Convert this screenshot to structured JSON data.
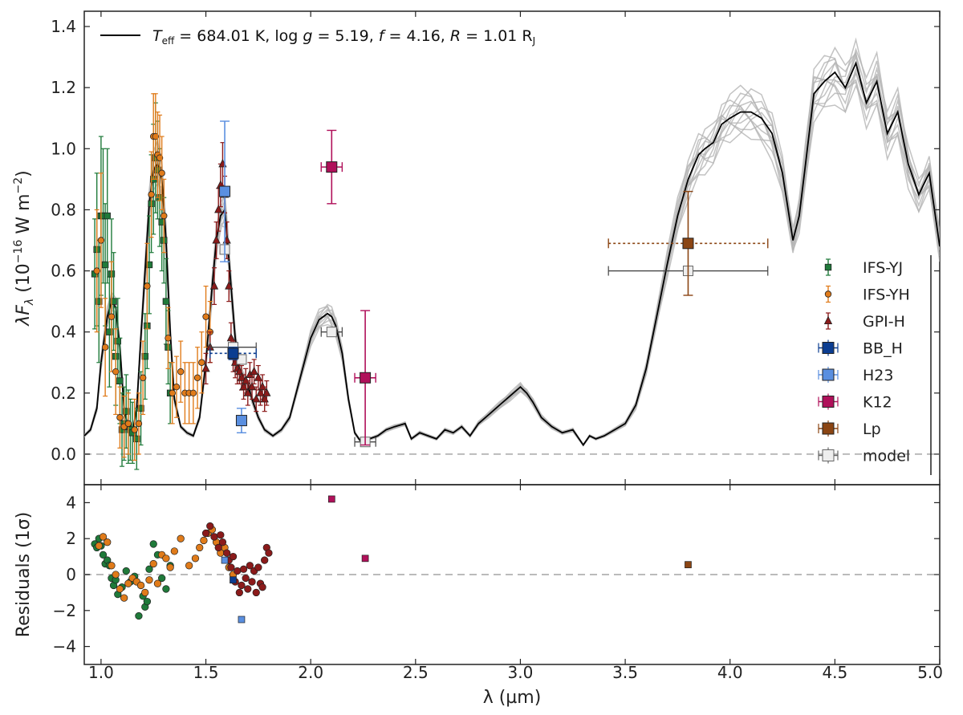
{
  "colors": {
    "model": "#000000",
    "samples": "#b4b4b4",
    "IFS-YJ": "#1f7a3a",
    "IFS-YH": "#e07b1a",
    "GPI-H": "#8b1a1a",
    "BB_H": "#0b3d91",
    "H23": "#5a8fe0",
    "K12": "#b0105a",
    "Lp": "#8b4513",
    "model_phot": "#eeeeee"
  },
  "chart_data": [
    {
      "id": "spectrum",
      "type": "line",
      "title": "T_eff = 684.01 K, log g = 5.19, f = 4.16, R = 1.01 R_J",
      "title_parts": {
        "teff_sym": "T",
        "teff_sub": "eff",
        "teff_val": " = 684.01 K, log",
        "g_sym": " g",
        "g_val": " = 5.19, ",
        "f_sym": "f",
        "f_val": " = 4.16, ",
        "r_sym": "R",
        "r_val": " = 1.01 R",
        "r_sub": "J"
      },
      "ylabel": "λF_λ (10^-16 W m^-2)",
      "ylabel_parts": {
        "pre": "λF",
        "sub": "λ",
        "mid": " (10",
        "sup": "−16",
        "post": " W m",
        "sup2": "−2",
        "end": ")"
      },
      "xlim": [
        0.92,
        5.0
      ],
      "ylim": [
        -0.1,
        1.45
      ],
      "yticks": [
        0.0,
        0.2,
        0.4,
        0.6,
        0.8,
        1.0,
        1.2,
        1.4
      ],
      "ytick_labels": [
        "0.0",
        "0.2",
        "0.4",
        "0.6",
        "0.8",
        "1.0",
        "1.2",
        "1.4"
      ],
      "model_spectrum": {
        "x": [
          0.92,
          0.95,
          0.98,
          1.0,
          1.03,
          1.05,
          1.07,
          1.09,
          1.11,
          1.13,
          1.15,
          1.17,
          1.19,
          1.21,
          1.23,
          1.25,
          1.27,
          1.29,
          1.31,
          1.33,
          1.35,
          1.38,
          1.41,
          1.44,
          1.47,
          1.5,
          1.53,
          1.55,
          1.57,
          1.59,
          1.6,
          1.62,
          1.64,
          1.66,
          1.68,
          1.7,
          1.72,
          1.75,
          1.78,
          1.82,
          1.86,
          1.9,
          1.95,
          2.0,
          2.04,
          2.08,
          2.1,
          2.12,
          2.15,
          2.18,
          2.21,
          2.24,
          2.28,
          2.32,
          2.36,
          2.4,
          2.45,
          2.48,
          2.52,
          2.56,
          2.6,
          2.64,
          2.68,
          2.72,
          2.76,
          2.8,
          2.85,
          2.9,
          2.95,
          3.0,
          3.03,
          3.06,
          3.1,
          3.15,
          3.2,
          3.25,
          3.3,
          3.33,
          3.36,
          3.4,
          3.45,
          3.5,
          3.55,
          3.6,
          3.65,
          3.7,
          3.75,
          3.8,
          3.85,
          3.88,
          3.92,
          3.96,
          4.0,
          4.05,
          4.1,
          4.15,
          4.2,
          4.25,
          4.3,
          4.33,
          4.36,
          4.4,
          4.45,
          4.5,
          4.55,
          4.6,
          4.65,
          4.7,
          4.75,
          4.8,
          4.85,
          4.9,
          4.95,
          5.0
        ],
        "y": [
          0.06,
          0.08,
          0.15,
          0.3,
          0.45,
          0.5,
          0.48,
          0.35,
          0.15,
          0.08,
          0.07,
          0.15,
          0.38,
          0.6,
          0.82,
          0.93,
          0.95,
          0.9,
          0.7,
          0.4,
          0.18,
          0.09,
          0.07,
          0.06,
          0.12,
          0.3,
          0.55,
          0.7,
          0.78,
          0.8,
          0.72,
          0.55,
          0.38,
          0.28,
          0.25,
          0.23,
          0.18,
          0.12,
          0.08,
          0.06,
          0.08,
          0.12,
          0.25,
          0.38,
          0.44,
          0.46,
          0.45,
          0.42,
          0.33,
          0.18,
          0.07,
          0.04,
          0.05,
          0.06,
          0.08,
          0.09,
          0.1,
          0.05,
          0.07,
          0.06,
          0.05,
          0.08,
          0.07,
          0.09,
          0.06,
          0.1,
          0.13,
          0.16,
          0.19,
          0.22,
          0.2,
          0.17,
          0.12,
          0.09,
          0.07,
          0.08,
          0.03,
          0.06,
          0.05,
          0.06,
          0.08,
          0.1,
          0.16,
          0.28,
          0.45,
          0.62,
          0.78,
          0.9,
          0.98,
          1.0,
          1.02,
          1.08,
          1.1,
          1.12,
          1.12,
          1.1,
          1.05,
          0.92,
          0.7,
          0.78,
          0.95,
          1.18,
          1.22,
          1.25,
          1.2,
          1.28,
          1.15,
          1.22,
          1.05,
          1.12,
          0.95,
          0.85,
          0.92,
          0.68
        ]
      },
      "series": [
        {
          "name": "IFS-YJ",
          "marker": "square",
          "x": [
            0.97,
            0.98,
            0.99,
            1.0,
            1.01,
            1.02,
            1.03,
            1.04,
            1.05,
            1.06,
            1.07,
            1.08,
            1.09,
            1.1,
            1.11,
            1.12,
            1.13,
            1.14,
            1.15,
            1.17,
            1.19,
            1.21,
            1.22,
            1.23,
            1.24,
            1.25,
            1.26,
            1.27,
            1.28,
            1.29,
            1.3,
            1.31,
            1.32,
            1.33
          ],
          "y": [
            0.59,
            0.67,
            0.5,
            0.78,
            0.78,
            0.62,
            0.78,
            0.4,
            0.59,
            0.5,
            0.32,
            0.37,
            0.24,
            0.08,
            0.1,
            0.14,
            0.09,
            0.08,
            0.07,
            0.05,
            0.15,
            0.32,
            0.42,
            0.62,
            0.82,
            0.9,
            0.97,
            0.93,
            0.84,
            0.76,
            0.7,
            0.5,
            0.35,
            0.2
          ],
          "yerr": [
            0.18,
            0.25,
            0.2,
            0.26,
            0.22,
            0.2,
            0.22,
            0.18,
            0.18,
            0.16,
            0.16,
            0.14,
            0.14,
            0.12,
            0.12,
            0.12,
            0.12,
            0.1,
            0.1,
            0.1,
            0.12,
            0.14,
            0.14,
            0.16,
            0.16,
            0.18,
            0.18,
            0.16,
            0.16,
            0.16,
            0.14,
            0.14,
            0.12,
            0.1
          ]
        },
        {
          "name": "IFS-YH",
          "marker": "circle",
          "x": [
            0.98,
            1.0,
            1.02,
            1.05,
            1.07,
            1.09,
            1.11,
            1.13,
            1.16,
            1.18,
            1.2,
            1.22,
            1.24,
            1.25,
            1.26,
            1.27,
            1.28,
            1.29,
            1.3,
            1.32,
            1.34,
            1.36,
            1.38,
            1.4,
            1.42,
            1.44,
            1.46,
            1.48,
            1.5,
            1.52
          ],
          "y": [
            0.6,
            0.7,
            0.35,
            0.45,
            0.27,
            0.12,
            0.09,
            0.1,
            0.08,
            0.1,
            0.25,
            0.55,
            0.85,
            1.04,
            1.04,
            0.98,
            0.97,
            0.92,
            0.78,
            0.38,
            0.2,
            0.22,
            0.27,
            0.2,
            0.2,
            0.2,
            0.25,
            0.3,
            0.45,
            0.4
          ],
          "yerr": [
            0.2,
            0.22,
            0.16,
            0.18,
            0.14,
            0.1,
            0.1,
            0.1,
            0.1,
            0.1,
            0.12,
            0.14,
            0.14,
            0.14,
            0.14,
            0.14,
            0.14,
            0.12,
            0.12,
            0.1,
            0.1,
            0.1,
            0.1,
            0.1,
            0.1,
            0.1,
            0.1,
            0.1,
            0.1,
            0.1
          ]
        },
        {
          "name": "GPI-H",
          "marker": "triangle",
          "x": [
            1.5,
            1.52,
            1.54,
            1.55,
            1.56,
            1.57,
            1.58,
            1.59,
            1.6,
            1.61,
            1.62,
            1.63,
            1.64,
            1.65,
            1.66,
            1.67,
            1.68,
            1.69,
            1.7,
            1.71,
            1.72,
            1.73,
            1.74,
            1.75,
            1.76,
            1.77,
            1.78,
            1.79
          ],
          "y": [
            0.28,
            0.35,
            0.55,
            0.7,
            0.8,
            0.88,
            0.95,
            0.85,
            0.7,
            0.55,
            0.38,
            0.32,
            0.3,
            0.28,
            0.27,
            0.25,
            0.22,
            0.24,
            0.2,
            0.26,
            0.22,
            0.27,
            0.18,
            0.25,
            0.2,
            0.22,
            0.18,
            0.2
          ],
          "yerr": [
            0.05,
            0.05,
            0.06,
            0.06,
            0.07,
            0.07,
            0.07,
            0.06,
            0.06,
            0.05,
            0.05,
            0.05,
            0.05,
            0.05,
            0.04,
            0.04,
            0.04,
            0.04,
            0.04,
            0.04,
            0.04,
            0.04,
            0.04,
            0.04,
            0.04,
            0.04,
            0.04,
            0.04
          ]
        }
      ],
      "photometry": [
        {
          "name": "BB_H",
          "x": 1.63,
          "y": 0.33,
          "xerr": 0.11,
          "yerr": 0.02
        },
        {
          "name": "H23",
          "x": 1.59,
          "y": 0.86,
          "xerr": 0.02,
          "yerr": 0.23
        },
        {
          "name": "H23",
          "x": 1.67,
          "y": 0.11,
          "xerr": 0.02,
          "yerr": 0.04
        },
        {
          "name": "K12",
          "x": 2.1,
          "y": 0.94,
          "xerr": 0.05,
          "yerr": 0.12
        },
        {
          "name": "K12",
          "x": 2.26,
          "y": 0.25,
          "xerr": 0.05,
          "yerr": 0.22
        },
        {
          "name": "Lp",
          "x": 3.8,
          "y": 0.69,
          "xerr": 0.38,
          "yerr": 0.17
        }
      ],
      "model_photometry": [
        {
          "x": 1.59,
          "y": 0.67,
          "xerr": 0.02
        },
        {
          "x": 1.63,
          "y": 0.35,
          "xerr": 0.11
        },
        {
          "x": 1.67,
          "y": 0.31,
          "xerr": 0.02
        },
        {
          "x": 2.1,
          "y": 0.4,
          "xerr": 0.05
        },
        {
          "x": 2.26,
          "y": 0.04,
          "xerr": 0.05
        },
        {
          "x": 3.8,
          "y": 0.6,
          "xerr": 0.38
        }
      ],
      "legend": [
        "IFS-YJ",
        "IFS-YH",
        "GPI-H",
        "BB_H",
        "H23",
        "K12",
        "Lp",
        "model"
      ],
      "legend_location": "right"
    },
    {
      "id": "residuals",
      "type": "scatter",
      "ylabel": "Residuals (1σ)",
      "xlabel": "λ (µm)",
      "xlim": [
        0.92,
        5.0
      ],
      "ylim": [
        -5,
        5
      ],
      "yticks": [
        -4,
        -2,
        0,
        2,
        4
      ],
      "ytick_labels": [
        "−4",
        "−2",
        "0",
        "2",
        "4"
      ],
      "xticks": [
        1.0,
        1.5,
        2.0,
        2.5,
        3.0,
        3.5,
        4.0,
        4.5,
        5.0
      ],
      "xtick_labels": [
        "1.0",
        "1.5",
        "2.0",
        "2.5",
        "3.0",
        "3.5",
        "4.0",
        "4.5",
        "5.0"
      ],
      "series": [
        {
          "name": "IFS-YJ",
          "x": [
            0.97,
            0.98,
            0.99,
            1.0,
            1.01,
            1.02,
            1.03,
            1.04,
            1.05,
            1.06,
            1.07,
            1.08,
            1.1,
            1.12,
            1.14,
            1.16,
            1.18,
            1.2,
            1.21,
            1.22,
            1.23,
            1.25,
            1.27,
            1.29,
            1.31,
            1.33
          ],
          "y": [
            1.7,
            1.5,
            2.0,
            1.6,
            1.1,
            0.6,
            0.8,
            0.5,
            -0.2,
            -0.6,
            -0.3,
            -1.1,
            -0.7,
            0.2,
            -0.4,
            -0.1,
            -2.3,
            -1.2,
            -1.8,
            -1.5,
            0.3,
            1.7,
            1.1,
            -0.2,
            -0.8,
            0.5
          ],
          "marker": "circle"
        },
        {
          "name": "IFS-YH",
          "x": [
            0.99,
            1.01,
            1.03,
            1.05,
            1.07,
            1.09,
            1.11,
            1.13,
            1.15,
            1.17,
            1.19,
            1.21,
            1.23,
            1.25,
            1.27,
            1.29,
            1.31,
            1.33,
            1.35,
            1.38,
            1.42,
            1.45,
            1.47,
            1.49,
            1.51,
            1.53,
            1.55,
            1.57,
            1.59,
            1.61,
            1.63
          ],
          "y": [
            1.6,
            2.1,
            1.8,
            0.5,
            0.0,
            -0.8,
            -1.3,
            -0.5,
            -0.2,
            -0.4,
            -0.6,
            -1.0,
            -0.3,
            0.6,
            -0.5,
            1.1,
            0.9,
            0.4,
            1.3,
            2.0,
            0.5,
            0.9,
            1.5,
            1.9,
            2.3,
            2.5,
            1.8,
            1.2,
            1.5,
            0.4,
            0.0
          ],
          "marker": "circle"
        },
        {
          "name": "GPI-H",
          "x": [
            1.5,
            1.52,
            1.54,
            1.56,
            1.57,
            1.58,
            1.6,
            1.61,
            1.62,
            1.63,
            1.64,
            1.65,
            1.66,
            1.67,
            1.68,
            1.69,
            1.7,
            1.71,
            1.72,
            1.73,
            1.74,
            1.75,
            1.76,
            1.77,
            1.78,
            1.79,
            1.8
          ],
          "y": [
            2.3,
            2.7,
            2.1,
            1.5,
            2.2,
            1.8,
            1.2,
            0.8,
            0.4,
            1.0,
            -0.4,
            0.2,
            -1.0,
            -0.6,
            0.3,
            -0.2,
            -0.8,
            0.5,
            -0.4,
            0.2,
            -1.0,
            0.4,
            -0.5,
            -0.7,
            0.8,
            1.5,
            1.2
          ],
          "marker": "circle"
        },
        {
          "name": "BB_H",
          "x": [
            1.63
          ],
          "y": [
            -0.3
          ],
          "marker": "square"
        },
        {
          "name": "H23",
          "x": [
            1.59,
            1.67
          ],
          "y": [
            0.8,
            -2.5
          ],
          "marker": "square"
        },
        {
          "name": "K12",
          "x": [
            2.1,
            2.26
          ],
          "y": [
            4.2,
            0.9
          ],
          "marker": "square"
        },
        {
          "name": "Lp",
          "x": [
            3.8
          ],
          "y": [
            0.55
          ],
          "marker": "square"
        }
      ]
    }
  ]
}
